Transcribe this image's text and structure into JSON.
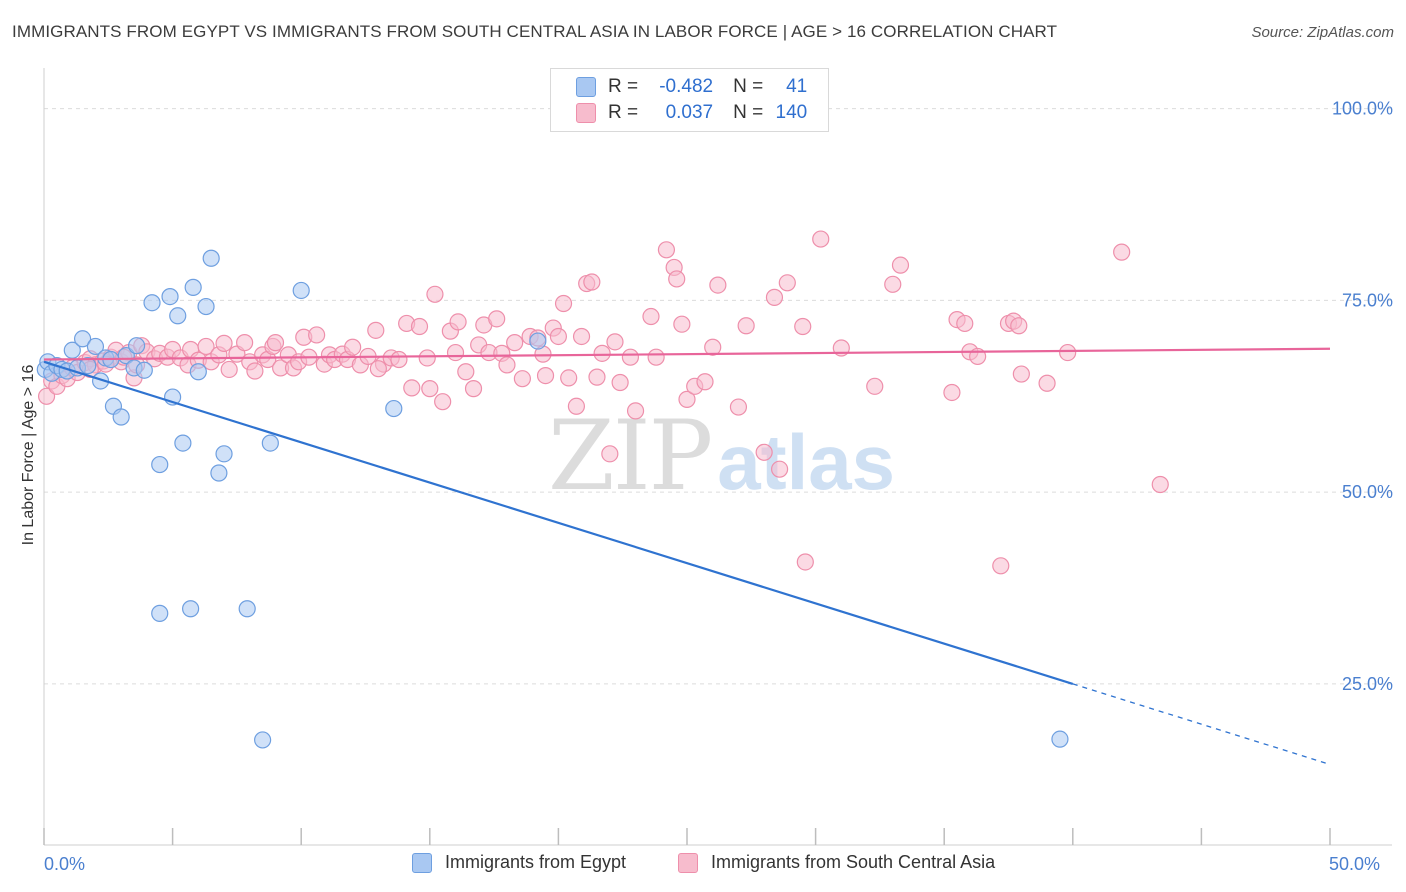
{
  "title": "IMMIGRANTS FROM EGYPT VS IMMIGRANTS FROM SOUTH CENTRAL ASIA IN LABOR FORCE | AGE > 16 CORRELATION CHART",
  "source": "Source: ZipAtlas.com",
  "watermark": {
    "part1": "ZIP",
    "part2": "atlas"
  },
  "legend_stats": {
    "r_label": "R =",
    "n_label": "N =",
    "egypt": {
      "r": "-0.482",
      "n": "41"
    },
    "sca": {
      "r": "0.037",
      "n": "140"
    }
  },
  "colors": {
    "egypt_fill": "#a9c8f2",
    "egypt_stroke": "#6e9fe0",
    "egypt_line": "#2f73d0",
    "sca_fill": "#f7bccd",
    "sca_stroke": "#ee8fab",
    "sca_line": "#e8659a",
    "tick_label": "#4a7fcf",
    "grid": "#dcdcdc"
  },
  "chart_data": {
    "type": "scatter",
    "title": "IMMIGRANTS FROM EGYPT VS IMMIGRANTS FROM SOUTH CENTRAL ASIA IN LABOR FORCE | AGE > 16 CORRELATION CHART",
    "xlabel": "",
    "ylabel": "In Labor Force | Age > 16",
    "xlim": [
      0,
      50
    ],
    "ylim": [
      4,
      104
    ],
    "x_tick_labels": [
      {
        "value": 0,
        "label": "0.0%"
      },
      {
        "value": 50,
        "label": "50.0%"
      }
    ],
    "x_minor_ticks": [
      0,
      5,
      10,
      15,
      20,
      25,
      30,
      35,
      40,
      45,
      50
    ],
    "y_ticks": [
      {
        "value": 100,
        "label": "100.0%"
      },
      {
        "value": 75,
        "label": "75.0%"
      },
      {
        "value": 50,
        "label": "50.0%"
      },
      {
        "value": 25,
        "label": "25.0%"
      }
    ],
    "grid": true,
    "legend_position": "bottom",
    "series": [
      {
        "name": "Immigrants from Egypt",
        "r": -0.482,
        "n": 41,
        "trend": {
          "x0": 0,
          "y0": 67.0,
          "x1": 40.0,
          "y1": 25.0,
          "dash_to_x": 50,
          "dash_to_y": 14.5
        },
        "points": [
          [
            0.05,
            66.0
          ],
          [
            0.15,
            67.0
          ],
          [
            0.3,
            65.5
          ],
          [
            0.5,
            66.5
          ],
          [
            0.7,
            66.0
          ],
          [
            0.9,
            65.8
          ],
          [
            1.1,
            68.5
          ],
          [
            1.3,
            66.2
          ],
          [
            1.5,
            70.0
          ],
          [
            1.7,
            66.5
          ],
          [
            2.0,
            69.0
          ],
          [
            2.2,
            64.5
          ],
          [
            2.4,
            67.5
          ],
          [
            2.6,
            67.3
          ],
          [
            2.7,
            61.2
          ],
          [
            3.0,
            59.8
          ],
          [
            3.2,
            67.8
          ],
          [
            3.5,
            66.2
          ],
          [
            3.6,
            69.1
          ],
          [
            3.9,
            65.9
          ],
          [
            4.2,
            74.7
          ],
          [
            4.5,
            53.6
          ],
          [
            4.9,
            75.5
          ],
          [
            5.0,
            62.4
          ],
          [
            5.2,
            73.0
          ],
          [
            5.4,
            56.4
          ],
          [
            5.8,
            76.7
          ],
          [
            6.0,
            65.7
          ],
          [
            6.3,
            74.2
          ],
          [
            6.5,
            80.5
          ],
          [
            6.8,
            52.5
          ],
          [
            7.0,
            55.0
          ],
          [
            8.8,
            56.4
          ],
          [
            10.0,
            76.3
          ],
          [
            4.5,
            34.2
          ],
          [
            5.7,
            34.8
          ],
          [
            7.9,
            34.8
          ],
          [
            8.5,
            17.7
          ],
          [
            13.6,
            60.9
          ],
          [
            19.2,
            69.7
          ],
          [
            39.5,
            17.8
          ]
        ]
      },
      {
        "name": "Immigrants from South Central Asia",
        "r": 0.037,
        "n": 140,
        "trend": {
          "x0": 0,
          "y0": 67.3,
          "x1": 50,
          "y1": 68.7
        },
        "points": [
          [
            0.1,
            62.5
          ],
          [
            0.3,
            64.5
          ],
          [
            0.5,
            63.8
          ],
          [
            0.7,
            65.2
          ],
          [
            0.9,
            64.8
          ],
          [
            1.1,
            66.2
          ],
          [
            1.3,
            65.6
          ],
          [
            1.6,
            66.9
          ],
          [
            1.8,
            67.4
          ],
          [
            2.0,
            66.6
          ],
          [
            2.3,
            67.1
          ],
          [
            2.6,
            67.6
          ],
          [
            2.8,
            68.5
          ],
          [
            3.0,
            67.0
          ],
          [
            3.3,
            68.2
          ],
          [
            3.5,
            64.9
          ],
          [
            3.6,
            66.6
          ],
          [
            3.8,
            69.1
          ],
          [
            4.0,
            68.3
          ],
          [
            4.3,
            67.4
          ],
          [
            4.5,
            68.1
          ],
          [
            4.8,
            67.6
          ],
          [
            5.0,
            68.6
          ],
          [
            5.3,
            67.5
          ],
          [
            5.6,
            66.6
          ],
          [
            5.7,
            68.6
          ],
          [
            6.0,
            67.2
          ],
          [
            6.3,
            69.0
          ],
          [
            6.5,
            67.0
          ],
          [
            6.8,
            67.9
          ],
          [
            7.0,
            69.4
          ],
          [
            7.2,
            66.0
          ],
          [
            7.5,
            68.0
          ],
          [
            7.8,
            69.5
          ],
          [
            8.0,
            67.0
          ],
          [
            8.2,
            65.8
          ],
          [
            8.5,
            67.9
          ],
          [
            8.7,
            67.3
          ],
          [
            8.9,
            69.0
          ],
          [
            9.2,
            66.2
          ],
          [
            9.5,
            67.9
          ],
          [
            9.7,
            66.2
          ],
          [
            9.9,
            67.0
          ],
          [
            10.1,
            70.2
          ],
          [
            10.3,
            67.6
          ],
          [
            10.6,
            70.5
          ],
          [
            10.9,
            66.7
          ],
          [
            11.1,
            67.9
          ],
          [
            11.3,
            67.3
          ],
          [
            11.6,
            68.0
          ],
          [
            11.8,
            67.3
          ],
          [
            12.0,
            68.9
          ],
          [
            12.3,
            66.6
          ],
          [
            12.6,
            67.7
          ],
          [
            12.9,
            71.1
          ],
          [
            13.2,
            66.7
          ],
          [
            13.5,
            67.5
          ],
          [
            13.8,
            67.3
          ],
          [
            14.1,
            72.0
          ],
          [
            14.3,
            63.6
          ],
          [
            14.6,
            71.6
          ],
          [
            14.9,
            67.5
          ],
          [
            15.0,
            63.5
          ],
          [
            15.2,
            75.8
          ],
          [
            15.5,
            61.8
          ],
          [
            15.8,
            71.0
          ],
          [
            16.1,
            72.2
          ],
          [
            16.4,
            65.7
          ],
          [
            16.7,
            63.5
          ],
          [
            16.9,
            69.2
          ],
          [
            17.1,
            71.8
          ],
          [
            17.3,
            68.2
          ],
          [
            17.6,
            72.6
          ],
          [
            17.8,
            68.1
          ],
          [
            18.0,
            66.6
          ],
          [
            18.3,
            69.5
          ],
          [
            18.6,
            64.8
          ],
          [
            18.9,
            70.3
          ],
          [
            19.2,
            70.1
          ],
          [
            19.4,
            68.0
          ],
          [
            19.5,
            65.2
          ],
          [
            19.8,
            71.4
          ],
          [
            20.0,
            70.3
          ],
          [
            20.2,
            74.6
          ],
          [
            20.4,
            64.9
          ],
          [
            20.7,
            61.2
          ],
          [
            20.9,
            70.3
          ],
          [
            21.1,
            77.2
          ],
          [
            21.3,
            77.4
          ],
          [
            21.5,
            65.0
          ],
          [
            21.7,
            68.1
          ],
          [
            22.0,
            55.0
          ],
          [
            22.2,
            69.6
          ],
          [
            22.4,
            64.3
          ],
          [
            22.8,
            67.6
          ],
          [
            23.0,
            60.6
          ],
          [
            23.6,
            72.9
          ],
          [
            23.8,
            67.6
          ],
          [
            24.2,
            81.6
          ],
          [
            24.5,
            79.3
          ],
          [
            24.6,
            77.8
          ],
          [
            24.8,
            71.9
          ],
          [
            25.0,
            62.1
          ],
          [
            25.3,
            63.8
          ],
          [
            25.7,
            64.4
          ],
          [
            26.0,
            68.9
          ],
          [
            26.2,
            77.0
          ],
          [
            27.0,
            61.1
          ],
          [
            27.3,
            71.7
          ],
          [
            28.0,
            55.2
          ],
          [
            28.4,
            75.4
          ],
          [
            28.6,
            53.0
          ],
          [
            28.9,
            77.3
          ],
          [
            29.5,
            71.6
          ],
          [
            29.6,
            40.9
          ],
          [
            30.2,
            83.0
          ],
          [
            31.0,
            68.8
          ],
          [
            32.3,
            63.8
          ],
          [
            33.0,
            77.1
          ],
          [
            33.3,
            79.6
          ],
          [
            35.3,
            63.0
          ],
          [
            35.5,
            72.5
          ],
          [
            35.8,
            72.0
          ],
          [
            36.0,
            68.3
          ],
          [
            36.3,
            67.7
          ],
          [
            37.2,
            40.4
          ],
          [
            37.5,
            72.0
          ],
          [
            37.7,
            72.3
          ],
          [
            37.9,
            71.7
          ],
          [
            38.0,
            65.4
          ],
          [
            39.0,
            64.2
          ],
          [
            39.8,
            68.2
          ],
          [
            41.9,
            81.3
          ],
          [
            43.4,
            51.0
          ],
          [
            1.8,
            66.0
          ],
          [
            2.4,
            66.7
          ],
          [
            3.1,
            67.6
          ],
          [
            9.0,
            69.5
          ],
          [
            13.0,
            66.1
          ],
          [
            16.0,
            68.2
          ]
        ]
      }
    ]
  }
}
